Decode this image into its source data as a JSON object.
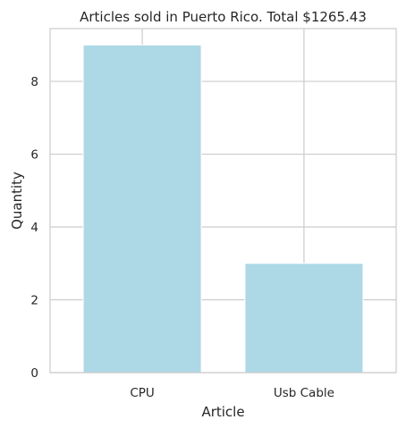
{
  "chart_data": {
    "type": "bar",
    "title": "Articles sold in Puerto Rico. Total $1265.43",
    "xlabel": "Article",
    "ylabel": "Quantity",
    "categories": [
      "CPU",
      "Usb Cable"
    ],
    "values": [
      9,
      3
    ],
    "ylim": [
      0,
      9.45
    ],
    "yticks": [
      0,
      2,
      4,
      6,
      8
    ],
    "grid": true,
    "bar_color": "#add8e6",
    "grid_color": "#cccccc",
    "background": "#ffffff"
  }
}
